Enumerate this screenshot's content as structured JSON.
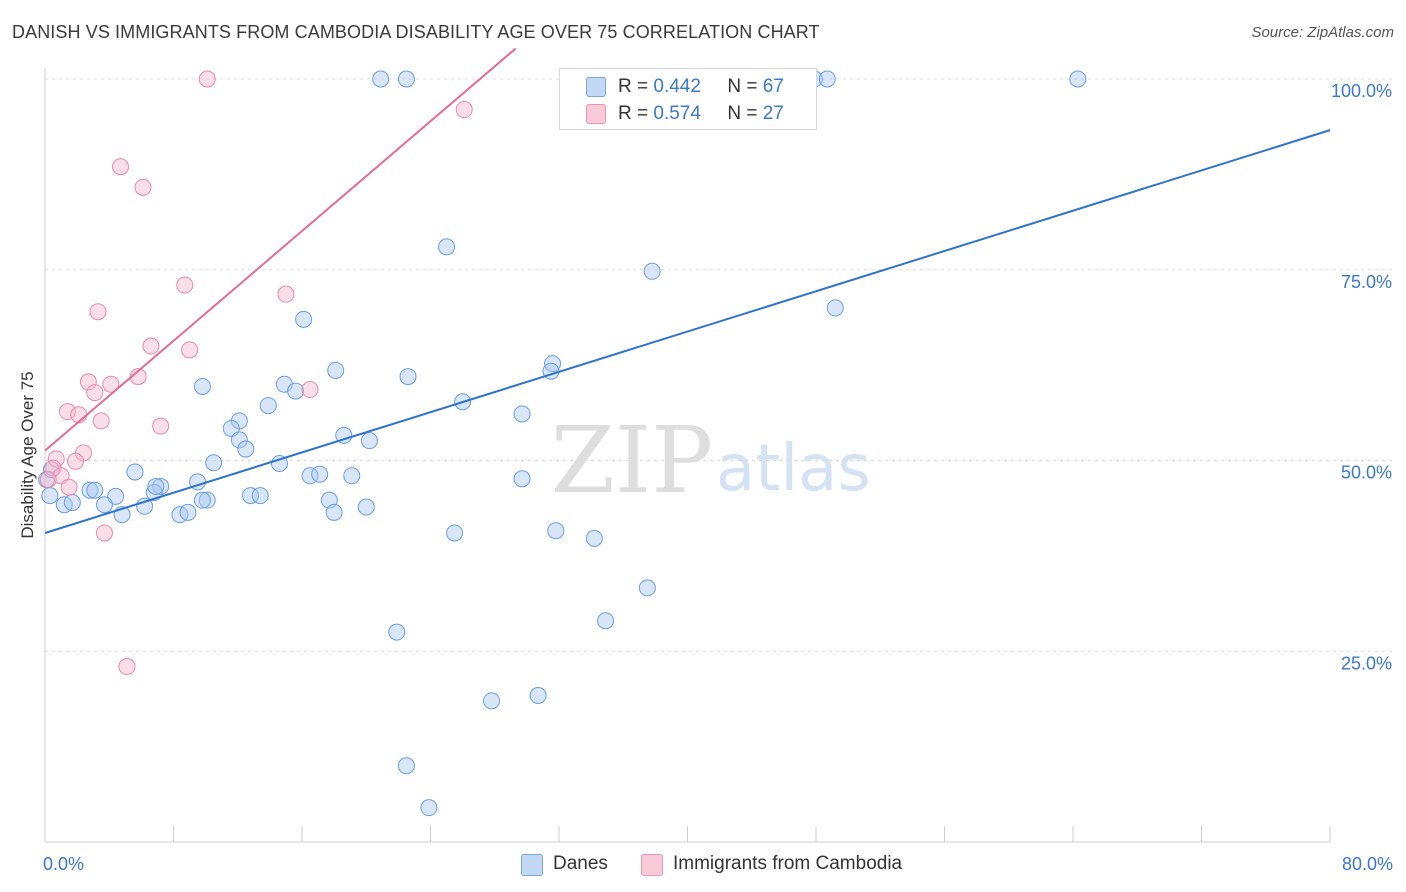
{
  "title": "DANISH VS IMMIGRANTS FROM CAMBODIA DISABILITY AGE OVER 75 CORRELATION CHART",
  "source": "Source: ZipAtlas.com",
  "watermark": {
    "zip": "ZIP",
    "atlas": "atlas"
  },
  "legend": {
    "r_label": "R =",
    "n_label": "N =",
    "rows": [
      {
        "r": "0.442",
        "n": "67",
        "color": "#a9c8f0"
      },
      {
        "r": "0.574",
        "n": "27",
        "color": "#f7b8cb"
      }
    ]
  },
  "chart_data": {
    "type": "scatter",
    "ylabel": "Disability Age Over 75",
    "xlabel": "",
    "xlim": [
      0,
      80
    ],
    "ylim": [
      0,
      104
    ],
    "x_tick_labels": [
      "0.0%",
      "80.0%"
    ],
    "y_ticks": [
      {
        "value": 25,
        "label": "25.0%"
      },
      {
        "value": 50,
        "label": "50.0%"
      },
      {
        "value": 75,
        "label": "75.0%"
      },
      {
        "value": 100,
        "label": "100.0%"
      }
    ],
    "grid": "horizontal dashed",
    "series": [
      {
        "name": "Danes",
        "color": "#a9c8f0",
        "stroke": "#6b9ee0",
        "line_color": "#2e72cf",
        "trend": {
          "x0": 0,
          "y0": 40.5,
          "x1": 80,
          "y1": 93.3
        },
        "points": [
          [
            20.9,
            100
          ],
          [
            22.5,
            100
          ],
          [
            39.5,
            100
          ],
          [
            47.9,
            100
          ],
          [
            48.7,
            100
          ],
          [
            64.3,
            100
          ],
          [
            25.0,
            78.0
          ],
          [
            37.8,
            74.8
          ],
          [
            49.2,
            70.0
          ],
          [
            16.1,
            68.5
          ],
          [
            18.1,
            61.8
          ],
          [
            22.6,
            61.0
          ],
          [
            31.6,
            62.7
          ],
          [
            31.5,
            61.7
          ],
          [
            9.8,
            59.7
          ],
          [
            14.9,
            60.0
          ],
          [
            15.6,
            59.1
          ],
          [
            26.0,
            57.7
          ],
          [
            29.7,
            56.1
          ],
          [
            13.9,
            57.2
          ],
          [
            12.1,
            55.2
          ],
          [
            11.6,
            54.2
          ],
          [
            12.1,
            52.7
          ],
          [
            18.6,
            53.3
          ],
          [
            20.2,
            52.6
          ],
          [
            12.5,
            51.5
          ],
          [
            10.5,
            49.7
          ],
          [
            14.6,
            49.6
          ],
          [
            16.5,
            48.0
          ],
          [
            17.1,
            48.2
          ],
          [
            19.1,
            48.0
          ],
          [
            29.7,
            47.6
          ],
          [
            5.6,
            48.5
          ],
          [
            7.2,
            46.6
          ],
          [
            9.5,
            47.2
          ],
          [
            2.8,
            46.1
          ],
          [
            3.1,
            46.1
          ],
          [
            4.4,
            45.3
          ],
          [
            6.8,
            45.8
          ],
          [
            12.8,
            45.4
          ],
          [
            13.4,
            45.4
          ],
          [
            17.7,
            44.8
          ],
          [
            20.0,
            43.9
          ],
          [
            18.0,
            43.2
          ],
          [
            0.3,
            45.4
          ],
          [
            1.2,
            44.2
          ],
          [
            1.7,
            44.5
          ],
          [
            3.7,
            44.2
          ],
          [
            6.2,
            44.0
          ],
          [
            4.8,
            42.9
          ],
          [
            8.4,
            42.9
          ],
          [
            8.9,
            43.2
          ],
          [
            10.1,
            44.8
          ],
          [
            6.9,
            46.6
          ],
          [
            25.5,
            40.5
          ],
          [
            31.8,
            40.8
          ],
          [
            34.2,
            39.8
          ],
          [
            37.5,
            33.3
          ],
          [
            34.9,
            29.0
          ],
          [
            21.9,
            27.5
          ],
          [
            27.8,
            18.5
          ],
          [
            30.7,
            19.2
          ],
          [
            22.5,
            10.0
          ],
          [
            23.9,
            4.5
          ],
          [
            0.1,
            47.5
          ],
          [
            0.4,
            48.8
          ],
          [
            9.8,
            44.8
          ]
        ]
      },
      {
        "name": "Immigrants from Cambodia",
        "color": "#f7b8cb",
        "stroke": "#e98aa8",
        "line_color": "#e46c94",
        "trend": {
          "x0": 0,
          "y0": 51.3,
          "x1": 29.3,
          "y1": 104
        },
        "points": [
          [
            10.1,
            100
          ],
          [
            26.1,
            96.0
          ],
          [
            4.7,
            88.5
          ],
          [
            6.1,
            85.8
          ],
          [
            8.7,
            73.0
          ],
          [
            15.0,
            71.8
          ],
          [
            3.3,
            69.5
          ],
          [
            6.6,
            65.0
          ],
          [
            9.0,
            64.5
          ],
          [
            5.8,
            61.0
          ],
          [
            2.7,
            60.3
          ],
          [
            4.1,
            60.0
          ],
          [
            16.5,
            59.3
          ],
          [
            3.1,
            58.9
          ],
          [
            1.4,
            56.4
          ],
          [
            2.1,
            56.0
          ],
          [
            3.5,
            55.2
          ],
          [
            7.2,
            54.5
          ],
          [
            2.4,
            51.0
          ],
          [
            0.7,
            50.2
          ],
          [
            1.9,
            49.9
          ],
          [
            0.5,
            49.0
          ],
          [
            1.0,
            48.0
          ],
          [
            0.2,
            47.5
          ],
          [
            3.7,
            40.5
          ],
          [
            5.1,
            23.0
          ],
          [
            1.5,
            46.5
          ]
        ]
      }
    ]
  }
}
